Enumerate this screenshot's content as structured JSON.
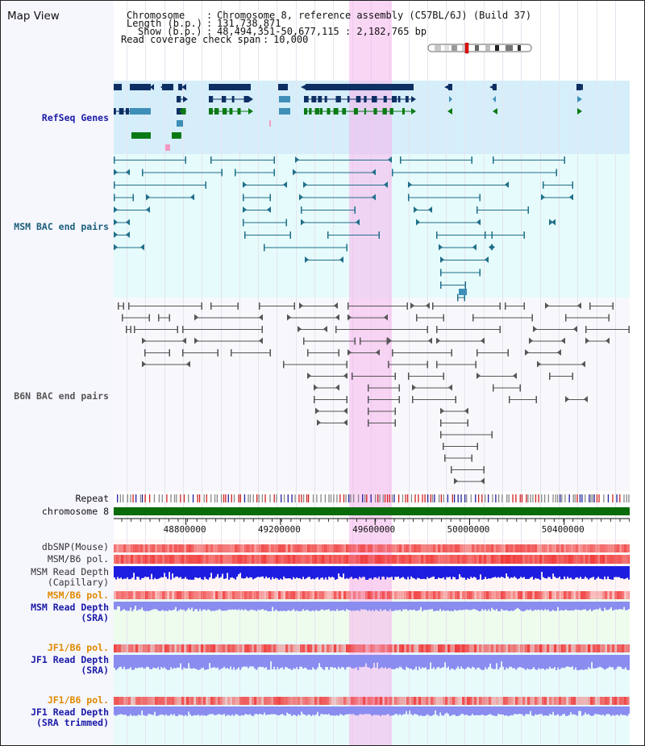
{
  "header": {
    "title": "Map View",
    "chromosome_key": "Chromosome",
    "chromosome_val": "Chromosome 8, reference assembly (C57BL/6J) (Build 37)",
    "length_key": "Length (b.p.)",
    "length_val": "131,738,871",
    "show_key": "Show (b.p.)",
    "show_val": "48,494,351-50,677,115 : 2,182,765 bp",
    "coverage_key": "Read coverage check span",
    "coverage_val": "10,000",
    "sep": ":"
  },
  "tracks": {
    "refseq": "RefSeq Genes",
    "msm_bac": "MSM BAC end pairs",
    "b6n_bac": "B6N BAC end pairs",
    "repeat": "Repeat",
    "chromosome": "chromosome 8",
    "dbsnp": "dbSNP(Mouse)",
    "msm_b6_pol_1": "MSM/B6 pol.",
    "msm_depth_cap_1": "MSM Read Depth",
    "msm_depth_cap_2": "(Capillary)",
    "msm_b6_pol_2": "MSM/B6 pol.",
    "msm_depth_sra_1": "MSM Read Depth",
    "msm_depth_sra_2": "(SRA)",
    "jf1_pol_1": "JF1/B6 pol.",
    "jf1_depth_sra_1": "JF1 Read Depth",
    "jf1_depth_sra_2": "(SRA)",
    "jf1_pol_2": "JF1/B6 pol.",
    "jf1_depth_trim_1": "JF1 Read Depth",
    "jf1_depth_trim_2": "(SRA trimmed)"
  },
  "axis": {
    "range": [
      48494351,
      50677115
    ],
    "ticks": [
      {
        "value": 48800000,
        "label": "48800000"
      },
      {
        "value": 49200000,
        "label": "49200000"
      },
      {
        "value": 49600000,
        "label": "49600000"
      },
      {
        "value": 50000000,
        "label": "50000000"
      },
      {
        "value": 50400000,
        "label": "50400000"
      }
    ]
  },
  "highlight_region": [
    49490000,
    49670000
  ],
  "colors": {
    "refseq_bg": "#d6eefa",
    "msm_bg": "#e6fbfb",
    "b6n_bg": "#f8f8fc",
    "gene_dark": "#0e2f63",
    "gene_blue": "#3e8fb8",
    "gene_green": "#0b7a14",
    "gene_pink": "#f29ac2",
    "msm_pair": "#1f6f8a",
    "b6n_pair": "#555555",
    "chromosome_bar": "#0a6b0a",
    "depth_capillary": "#1d1de0",
    "depth_sra": "#8a8cf0",
    "pol_red": "#f04040",
    "snp_red": "#f07070",
    "lower_bg_msm": "#eefcee",
    "lower_bg_jf1": "#e8fbfb"
  }
}
